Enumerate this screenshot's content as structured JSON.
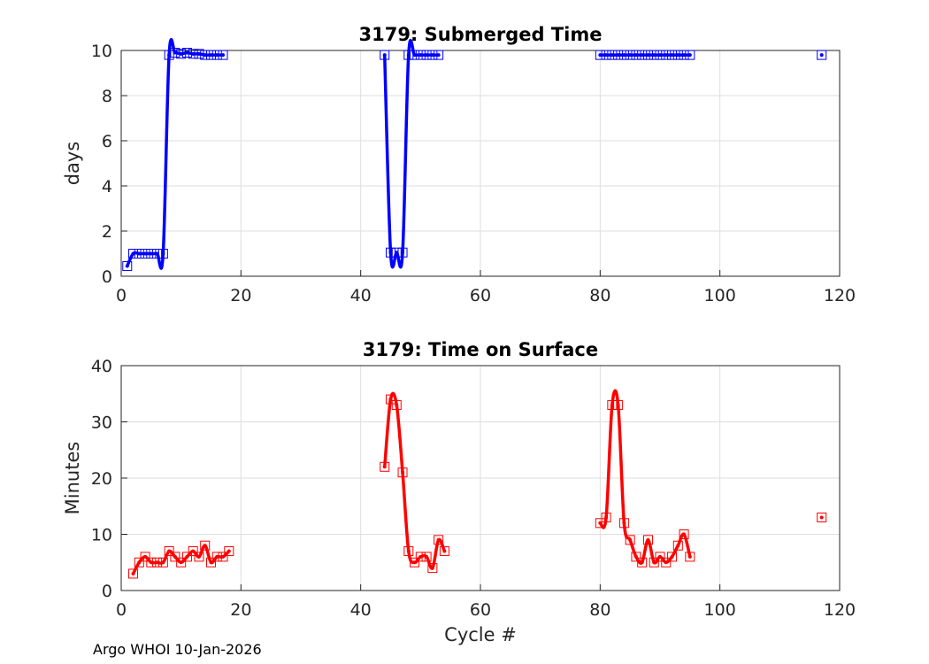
{
  "chart_data": [
    {
      "type": "line",
      "title": "3179: Submerged Time",
      "xlabel": "",
      "ylabel": "days",
      "xlim": [
        0,
        120
      ],
      "ylim": [
        0,
        10
      ],
      "xticks": [
        0,
        20,
        40,
        60,
        80,
        100,
        120
      ],
      "yticks": [
        0,
        2,
        4,
        6,
        8,
        10
      ],
      "grid": true,
      "color": "#0000ff",
      "x": [
        1,
        2,
        3,
        4,
        5,
        6,
        7,
        8,
        9,
        10,
        11,
        12,
        13,
        14,
        15,
        16,
        17,
        44,
        45,
        46,
        47,
        48,
        49,
        50,
        51,
        52,
        53,
        80,
        81,
        82,
        83,
        84,
        85,
        86,
        87,
        88,
        89,
        90,
        91,
        92,
        93,
        94,
        95,
        117
      ],
      "values": [
        0.45,
        1.0,
        1.0,
        1.0,
        1.0,
        1.0,
        1.0,
        9.8,
        9.9,
        9.85,
        9.9,
        9.85,
        9.85,
        9.8,
        9.8,
        9.8,
        9.8,
        9.8,
        1.05,
        1.05,
        1.05,
        9.8,
        9.8,
        9.8,
        9.8,
        9.8,
        9.8,
        9.8,
        9.8,
        9.8,
        9.8,
        9.8,
        9.8,
        9.8,
        9.8,
        9.8,
        9.8,
        9.8,
        9.8,
        9.8,
        9.8,
        9.8,
        9.8,
        9.8
      ],
      "line_segments": [
        [
          1,
          17
        ],
        [
          44,
          53
        ],
        [
          80,
          95
        ]
      ]
    },
    {
      "type": "line",
      "title": "3179: Time on Surface",
      "xlabel": "Cycle #",
      "ylabel": "Minutes",
      "xlim": [
        0,
        120
      ],
      "ylim": [
        0,
        40
      ],
      "xticks": [
        0,
        20,
        40,
        60,
        80,
        100,
        120
      ],
      "yticks": [
        0,
        10,
        20,
        30,
        40
      ],
      "grid": true,
      "color": "#ff0000",
      "x": [
        2,
        3,
        4,
        5,
        6,
        7,
        8,
        9,
        10,
        11,
        12,
        13,
        14,
        15,
        16,
        17,
        18,
        44,
        45,
        46,
        47,
        48,
        49,
        50,
        51,
        52,
        53,
        54,
        80,
        81,
        82,
        83,
        84,
        85,
        86,
        87,
        88,
        89,
        90,
        91,
        92,
        93,
        94,
        95,
        117
      ],
      "values": [
        3,
        5,
        6,
        5,
        5,
        5,
        7,
        6,
        5,
        6,
        7,
        6,
        8,
        5,
        6,
        6,
        7,
        22,
        34,
        33,
        21,
        7,
        5,
        6,
        6,
        4,
        9,
        7,
        12,
        13,
        33,
        33,
        12,
        9,
        6,
        5,
        9,
        5,
        6,
        5,
        6,
        8,
        10,
        6,
        13
      ],
      "line_segments": [
        [
          2,
          18
        ],
        [
          44,
          54
        ],
        [
          80,
          95
        ]
      ]
    }
  ],
  "footer": "Argo WHOI 10-Jan-2026"
}
